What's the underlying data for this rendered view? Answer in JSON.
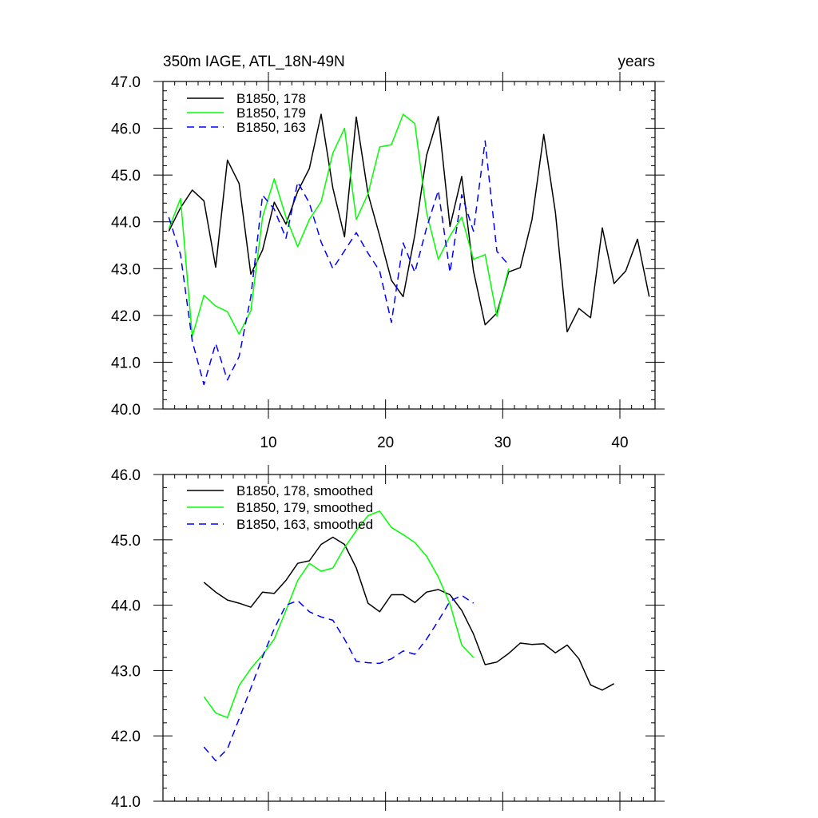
{
  "chart_data": [
    {
      "type": "line",
      "title": "350m IAGE, ATL_18N-49N",
      "units_label": "years",
      "xlim": [
        1,
        43
      ],
      "ylim": [
        40.0,
        47.0
      ],
      "xticks": [
        10,
        20,
        30,
        40
      ],
      "yticks": [
        "40.0",
        "41.0",
        "42.0",
        "43.0",
        "44.0",
        "45.0",
        "46.0",
        "47.0"
      ],
      "legend": {
        "position": "top-left",
        "entries": [
          "B1850, 178",
          "B1850, 179",
          "B1850, 163"
        ]
      },
      "series": [
        {
          "name": "B1850, 178",
          "color": "#000000",
          "dash": "solid",
          "x": [
            1.5,
            2.5,
            3.5,
            4.5,
            5.5,
            6.5,
            7.5,
            8.5,
            9.5,
            10.5,
            11.5,
            12.5,
            13.5,
            14.5,
            15.5,
            16.5,
            17.5,
            18.5,
            19.5,
            20.5,
            21.5,
            22.5,
            23.5,
            24.5,
            25.5,
            26.5,
            27.5,
            28.5,
            29.5,
            30.5,
            31.5,
            32.5,
            33.5,
            34.5,
            35.5,
            36.5,
            37.5,
            38.5,
            39.5,
            40.5,
            41.5,
            42.5
          ],
          "y": [
            43.8,
            44.3,
            44.68,
            44.45,
            43.03,
            45.32,
            44.82,
            42.88,
            43.4,
            44.42,
            43.95,
            44.65,
            45.14,
            46.3,
            44.72,
            43.68,
            46.24,
            44.6,
            43.7,
            42.75,
            42.4,
            43.72,
            45.42,
            46.25,
            43.9,
            44.97,
            42.95,
            41.8,
            42.05,
            42.93,
            43.02,
            44.05,
            45.87,
            44.2,
            41.65,
            42.15,
            41.95,
            43.87,
            42.68,
            42.95,
            43.63,
            42.4
          ]
        },
        {
          "name": "B1850, 179",
          "color": "#00ff00",
          "dash": "solid",
          "x": [
            1.5,
            2.5,
            3.5,
            4.5,
            5.5,
            6.5,
            7.5,
            8.5,
            9.5,
            10.5,
            11.5,
            12.5,
            13.5,
            14.5,
            15.5,
            16.5,
            17.5,
            18.5,
            19.5,
            20.5,
            21.5,
            22.5,
            23.5,
            24.5,
            25.5,
            26.5,
            27.5,
            28.5,
            29.5,
            30.5
          ],
          "y": [
            43.85,
            44.5,
            41.55,
            42.43,
            42.2,
            42.08,
            41.6,
            42.1,
            44.1,
            44.92,
            44.1,
            43.47,
            44.05,
            44.43,
            45.47,
            46.0,
            44.05,
            44.6,
            45.6,
            45.65,
            46.3,
            46.1,
            44.2,
            43.2,
            43.7,
            44.1,
            43.2,
            43.3,
            41.98,
            43.0
          ]
        },
        {
          "name": "B1850, 163",
          "color": "#0000ff",
          "dash": "dashed",
          "x": [
            1.5,
            2.5,
            3.5,
            4.5,
            5.5,
            6.5,
            7.5,
            8.5,
            9.5,
            10.5,
            11.5,
            12.5,
            13.5,
            14.5,
            15.5,
            16.5,
            17.5,
            18.5,
            19.5,
            20.5,
            21.5,
            22.5,
            23.5,
            24.5,
            25.5,
            26.5,
            27.5,
            28.5,
            29.5,
            30.5
          ],
          "y": [
            44.1,
            43.3,
            41.45,
            40.52,
            41.4,
            40.62,
            41.12,
            42.4,
            44.57,
            44.27,
            43.65,
            44.85,
            44.4,
            43.57,
            43.0,
            43.38,
            43.77,
            43.33,
            42.95,
            41.85,
            43.55,
            42.92,
            43.87,
            44.67,
            42.92,
            44.58,
            43.8,
            45.73,
            43.37,
            43.08
          ]
        }
      ]
    },
    {
      "type": "line",
      "title": "",
      "xlim": [
        1,
        43
      ],
      "ylim": [
        41.0,
        46.0
      ],
      "xticks": [
        10,
        20,
        30,
        40
      ],
      "yticks": [
        "41.0",
        "42.0",
        "43.0",
        "44.0",
        "45.0",
        "46.0"
      ],
      "legend": {
        "position": "top-left",
        "entries": [
          "B1850, 178, smoothed",
          "B1850, 179, smoothed",
          "B1850, 163, smoothed"
        ]
      },
      "series": [
        {
          "name": "B1850, 178, smoothed",
          "color": "#000000",
          "dash": "solid",
          "x": [
            4.5,
            5.5,
            6.5,
            7.5,
            8.5,
            9.5,
            10.5,
            11.5,
            12.5,
            13.5,
            14.5,
            15.5,
            16.5,
            17.5,
            18.5,
            19.5,
            20.5,
            21.5,
            22.5,
            23.5,
            24.5,
            25.5,
            26.5,
            27.5,
            28.5,
            29.5,
            30.5,
            31.5,
            32.5,
            33.5,
            34.5,
            35.5,
            36.5,
            37.5,
            38.5,
            39.5
          ],
          "y": [
            44.35,
            44.2,
            44.08,
            44.03,
            43.97,
            44.2,
            44.18,
            44.38,
            44.64,
            44.68,
            44.93,
            45.04,
            44.93,
            44.57,
            44.03,
            43.9,
            44.16,
            44.16,
            44.04,
            44.2,
            44.24,
            44.16,
            43.92,
            43.56,
            43.09,
            43.13,
            43.26,
            43.42,
            43.4,
            43.41,
            43.27,
            43.39,
            43.18,
            42.78,
            42.7,
            42.8
          ]
        },
        {
          "name": "B1850, 179, smoothed",
          "color": "#00ff00",
          "dash": "solid",
          "x": [
            4.5,
            5.5,
            6.5,
            7.5,
            8.5,
            9.5,
            10.5,
            11.5,
            12.5,
            13.5,
            14.5,
            15.5,
            16.5,
            17.5,
            18.5,
            19.5,
            20.5,
            21.5,
            22.5,
            23.5,
            24.5,
            25.5,
            26.5,
            27.5
          ],
          "y": [
            42.6,
            42.35,
            42.28,
            42.77,
            43.03,
            43.24,
            43.48,
            43.92,
            44.38,
            44.64,
            44.52,
            44.57,
            44.88,
            45.14,
            45.37,
            45.44,
            45.19,
            45.08,
            44.96,
            44.75,
            44.43,
            44.02,
            43.39,
            43.2
          ]
        },
        {
          "name": "B1850, 163, smoothed",
          "color": "#0000ff",
          "dash": "dashed",
          "x": [
            4.5,
            5.5,
            6.5,
            7.5,
            8.5,
            9.5,
            10.5,
            11.5,
            12.5,
            13.5,
            14.5,
            15.5,
            16.5,
            17.5,
            18.5,
            19.5,
            20.5,
            21.5,
            22.5,
            23.5,
            24.5,
            25.5,
            26.5,
            27.5
          ],
          "y": [
            41.83,
            41.62,
            41.8,
            42.26,
            42.73,
            43.21,
            43.64,
            44.0,
            44.07,
            43.9,
            43.82,
            43.77,
            43.48,
            43.14,
            43.12,
            43.11,
            43.18,
            43.3,
            43.25,
            43.48,
            43.76,
            44.06,
            44.15,
            44.03
          ]
        }
      ]
    }
  ]
}
